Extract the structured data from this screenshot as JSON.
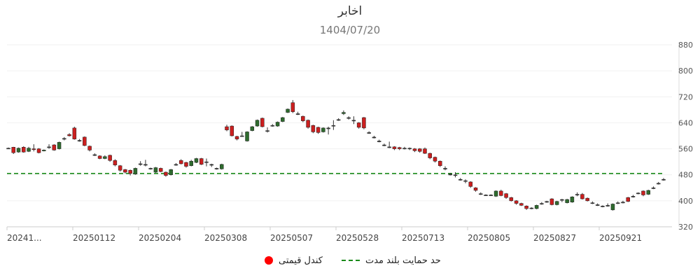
{
  "chart_data": {
    "type": "candlestick",
    "title": "اخابر",
    "subtitle": "1404/07/20",
    "y_ticks": [
      320,
      400,
      480,
      560,
      640,
      720,
      800,
      880
    ],
    "ylim": [
      320,
      880
    ],
    "x_tick_labels": [
      "20241...",
      "20250112",
      "20250204",
      "20250308",
      "20250507",
      "20250528",
      "20250713",
      "20250805",
      "20250827",
      "20250921"
    ],
    "support_level": 484,
    "legend": {
      "candle": "کندل قیمتی",
      "support": "حد حمایت بلند مدت"
    },
    "colors": {
      "up": "#2e6b2e",
      "down": "#cc1f1f",
      "support": "#1a8a1a"
    },
    "candles": [
      {
        "o": 562,
        "c": 562,
        "h": 564,
        "l": 560
      },
      {
        "o": 565,
        "c": 548,
        "h": 566,
        "l": 544
      },
      {
        "o": 550,
        "c": 562,
        "h": 564,
        "l": 548
      },
      {
        "o": 565,
        "c": 550,
        "h": 568,
        "l": 548
      },
      {
        "o": 552,
        "c": 562,
        "h": 566,
        "l": 550
      },
      {
        "o": 560,
        "c": 558,
        "h": 574,
        "l": 552
      },
      {
        "o": 560,
        "c": 548,
        "h": 562,
        "l": 546
      },
      {
        "o": 554,
        "c": 556,
        "h": 558,
        "l": 552
      },
      {
        "o": 566,
        "c": 566,
        "h": 574,
        "l": 560
      },
      {
        "o": 572,
        "c": 556,
        "h": 574,
        "l": 554
      },
      {
        "o": 560,
        "c": 580,
        "h": 582,
        "l": 558
      },
      {
        "o": 592,
        "c": 592,
        "h": 596,
        "l": 586
      },
      {
        "o": 604,
        "c": 600,
        "h": 608,
        "l": 598
      },
      {
        "o": 624,
        "c": 590,
        "h": 628,
        "l": 588
      },
      {
        "o": 586,
        "c": 586,
        "h": 590,
        "l": 582
      },
      {
        "o": 596,
        "c": 570,
        "h": 598,
        "l": 568
      },
      {
        "o": 568,
        "c": 556,
        "h": 570,
        "l": 552
      },
      {
        "o": 542,
        "c": 542,
        "h": 546,
        "l": 538
      },
      {
        "o": 538,
        "c": 530,
        "h": 540,
        "l": 528
      },
      {
        "o": 530,
        "c": 536,
        "h": 540,
        "l": 528
      },
      {
        "o": 540,
        "c": 524,
        "h": 542,
        "l": 520
      },
      {
        "o": 524,
        "c": 510,
        "h": 528,
        "l": 506
      },
      {
        "o": 508,
        "c": 494,
        "h": 510,
        "l": 490
      },
      {
        "o": 496,
        "c": 488,
        "h": 498,
        "l": 484
      },
      {
        "o": 494,
        "c": 484,
        "h": 496,
        "l": 478
      },
      {
        "o": 482,
        "c": 500,
        "h": 502,
        "l": 480
      },
      {
        "o": 514,
        "c": 514,
        "h": 522,
        "l": 508
      },
      {
        "o": 512,
        "c": 512,
        "h": 526,
        "l": 506
      },
      {
        "o": 500,
        "c": 500,
        "h": 502,
        "l": 496
      },
      {
        "o": 488,
        "c": 502,
        "h": 504,
        "l": 486
      },
      {
        "o": 500,
        "c": 490,
        "h": 502,
        "l": 488
      },
      {
        "o": 488,
        "c": 478,
        "h": 490,
        "l": 474
      },
      {
        "o": 480,
        "c": 496,
        "h": 498,
        "l": 478
      },
      {
        "o": 512,
        "c": 512,
        "h": 516,
        "l": 508
      },
      {
        "o": 524,
        "c": 514,
        "h": 528,
        "l": 512
      },
      {
        "o": 518,
        "c": 506,
        "h": 520,
        "l": 502
      },
      {
        "o": 508,
        "c": 522,
        "h": 526,
        "l": 506
      },
      {
        "o": 518,
        "c": 530,
        "h": 532,
        "l": 516
      },
      {
        "o": 530,
        "c": 512,
        "h": 532,
        "l": 510
      },
      {
        "o": 520,
        "c": 520,
        "h": 530,
        "l": 506
      },
      {
        "o": 512,
        "c": 512,
        "h": 514,
        "l": 504
      },
      {
        "o": 500,
        "c": 500,
        "h": 502,
        "l": 496
      },
      {
        "o": 498,
        "c": 512,
        "h": 514,
        "l": 496
      },
      {
        "o": 628,
        "c": 618,
        "h": 634,
        "l": 614
      },
      {
        "o": 630,
        "c": 600,
        "h": 632,
        "l": 598
      },
      {
        "o": 598,
        "c": 590,
        "h": 600,
        "l": 586
      },
      {
        "o": 600,
        "c": 600,
        "h": 612,
        "l": 598
      },
      {
        "o": 584,
        "c": 612,
        "h": 614,
        "l": 582
      },
      {
        "o": 616,
        "c": 628,
        "h": 630,
        "l": 614
      },
      {
        "o": 630,
        "c": 648,
        "h": 650,
        "l": 628
      },
      {
        "o": 654,
        "c": 628,
        "h": 656,
        "l": 626
      },
      {
        "o": 616,
        "c": 616,
        "h": 626,
        "l": 610
      },
      {
        "o": 632,
        "c": 632,
        "h": 636,
        "l": 628
      },
      {
        "o": 630,
        "c": 642,
        "h": 644,
        "l": 628
      },
      {
        "o": 644,
        "c": 656,
        "h": 658,
        "l": 642
      },
      {
        "o": 672,
        "c": 682,
        "h": 684,
        "l": 670
      },
      {
        "o": 702,
        "c": 674,
        "h": 710,
        "l": 670
      },
      {
        "o": 668,
        "c": 668,
        "h": 674,
        "l": 664
      },
      {
        "o": 660,
        "c": 646,
        "h": 662,
        "l": 642
      },
      {
        "o": 648,
        "c": 626,
        "h": 650,
        "l": 622
      },
      {
        "o": 632,
        "c": 612,
        "h": 634,
        "l": 608
      },
      {
        "o": 626,
        "c": 610,
        "h": 628,
        "l": 606
      },
      {
        "o": 612,
        "c": 624,
        "h": 626,
        "l": 610
      },
      {
        "o": 624,
        "c": 624,
        "h": 628,
        "l": 604
      },
      {
        "o": 632,
        "c": 632,
        "h": 648,
        "l": 618
      },
      {
        "o": 650,
        "c": 650,
        "h": 654,
        "l": 646
      },
      {
        "o": 668,
        "c": 672,
        "h": 678,
        "l": 664
      },
      {
        "o": 656,
        "c": 656,
        "h": 660,
        "l": 650
      },
      {
        "o": 648,
        "c": 648,
        "h": 660,
        "l": 636
      },
      {
        "o": 640,
        "c": 626,
        "h": 642,
        "l": 622
      },
      {
        "o": 656,
        "c": 624,
        "h": 658,
        "l": 620
      },
      {
        "o": 610,
        "c": 610,
        "h": 614,
        "l": 606
      },
      {
        "o": 596,
        "c": 596,
        "h": 600,
        "l": 592
      },
      {
        "o": 584,
        "c": 584,
        "h": 588,
        "l": 580
      },
      {
        "o": 572,
        "c": 572,
        "h": 576,
        "l": 568
      },
      {
        "o": 566,
        "c": 566,
        "h": 582,
        "l": 562
      },
      {
        "o": 566,
        "c": 560,
        "h": 568,
        "l": 556
      },
      {
        "o": 564,
        "c": 560,
        "h": 566,
        "l": 556
      },
      {
        "o": 562,
        "c": 562,
        "h": 566,
        "l": 558
      },
      {
        "o": 562,
        "c": 562,
        "h": 564,
        "l": 556
      },
      {
        "o": 560,
        "c": 554,
        "h": 562,
        "l": 550
      },
      {
        "o": 560,
        "c": 552,
        "h": 562,
        "l": 548
      },
      {
        "o": 560,
        "c": 546,
        "h": 564,
        "l": 544
      },
      {
        "o": 546,
        "c": 532,
        "h": 548,
        "l": 528
      },
      {
        "o": 534,
        "c": 522,
        "h": 536,
        "l": 518
      },
      {
        "o": 522,
        "c": 508,
        "h": 524,
        "l": 504
      },
      {
        "o": 500,
        "c": 500,
        "h": 506,
        "l": 494
      },
      {
        "o": 482,
        "c": 482,
        "h": 486,
        "l": 478
      },
      {
        "o": 480,
        "c": 480,
        "h": 488,
        "l": 472
      },
      {
        "o": 466,
        "c": 466,
        "h": 470,
        "l": 462
      },
      {
        "o": 462,
        "c": 462,
        "h": 466,
        "l": 454
      },
      {
        "o": 458,
        "c": 444,
        "h": 460,
        "l": 440
      },
      {
        "o": 440,
        "c": 432,
        "h": 442,
        "l": 428
      },
      {
        "o": 422,
        "c": 422,
        "h": 426,
        "l": 418
      },
      {
        "o": 418,
        "c": 418,
        "h": 420,
        "l": 416
      },
      {
        "o": 418,
        "c": 418,
        "h": 420,
        "l": 416
      },
      {
        "o": 414,
        "c": 430,
        "h": 432,
        "l": 412
      },
      {
        "o": 430,
        "c": 416,
        "h": 434,
        "l": 414
      },
      {
        "o": 422,
        "c": 410,
        "h": 424,
        "l": 406
      },
      {
        "o": 410,
        "c": 400,
        "h": 412,
        "l": 398
      },
      {
        "o": 400,
        "c": 392,
        "h": 402,
        "l": 388
      },
      {
        "o": 392,
        "c": 386,
        "h": 394,
        "l": 384
      },
      {
        "o": 384,
        "c": 376,
        "h": 386,
        "l": 372
      },
      {
        "o": 378,
        "c": 378,
        "h": 380,
        "l": 374
      },
      {
        "o": 376,
        "c": 386,
        "h": 388,
        "l": 374
      },
      {
        "o": 392,
        "c": 392,
        "h": 396,
        "l": 388
      },
      {
        "o": 398,
        "c": 398,
        "h": 400,
        "l": 394
      },
      {
        "o": 406,
        "c": 388,
        "h": 408,
        "l": 386
      },
      {
        "o": 388,
        "c": 398,
        "h": 400,
        "l": 386
      },
      {
        "o": 404,
        "c": 404,
        "h": 406,
        "l": 396
      },
      {
        "o": 394,
        "c": 404,
        "h": 406,
        "l": 392
      },
      {
        "o": 396,
        "c": 412,
        "h": 414,
        "l": 394
      },
      {
        "o": 420,
        "c": 420,
        "h": 426,
        "l": 414
      },
      {
        "o": 420,
        "c": 406,
        "h": 424,
        "l": 404
      },
      {
        "o": 408,
        "c": 400,
        "h": 410,
        "l": 398
      },
      {
        "o": 394,
        "c": 394,
        "h": 398,
        "l": 390
      },
      {
        "o": 388,
        "c": 388,
        "h": 392,
        "l": 384
      },
      {
        "o": 384,
        "c": 384,
        "h": 386,
        "l": 380
      },
      {
        "o": 386,
        "c": 386,
        "h": 392,
        "l": 382
      },
      {
        "o": 372,
        "c": 390,
        "h": 392,
        "l": 370
      },
      {
        "o": 394,
        "c": 394,
        "h": 398,
        "l": 390
      },
      {
        "o": 396,
        "c": 396,
        "h": 400,
        "l": 392
      },
      {
        "o": 410,
        "c": 398,
        "h": 412,
        "l": 396
      },
      {
        "o": 414,
        "c": 414,
        "h": 418,
        "l": 410
      },
      {
        "o": 424,
        "c": 424,
        "h": 426,
        "l": 420
      },
      {
        "o": 430,
        "c": 418,
        "h": 432,
        "l": 414
      },
      {
        "o": 420,
        "c": 432,
        "h": 434,
        "l": 418
      },
      {
        "o": 440,
        "c": 440,
        "h": 444,
        "l": 436
      },
      {
        "o": 454,
        "c": 454,
        "h": 458,
        "l": 450
      },
      {
        "o": 466,
        "c": 466,
        "h": 470,
        "l": 462
      }
    ]
  }
}
